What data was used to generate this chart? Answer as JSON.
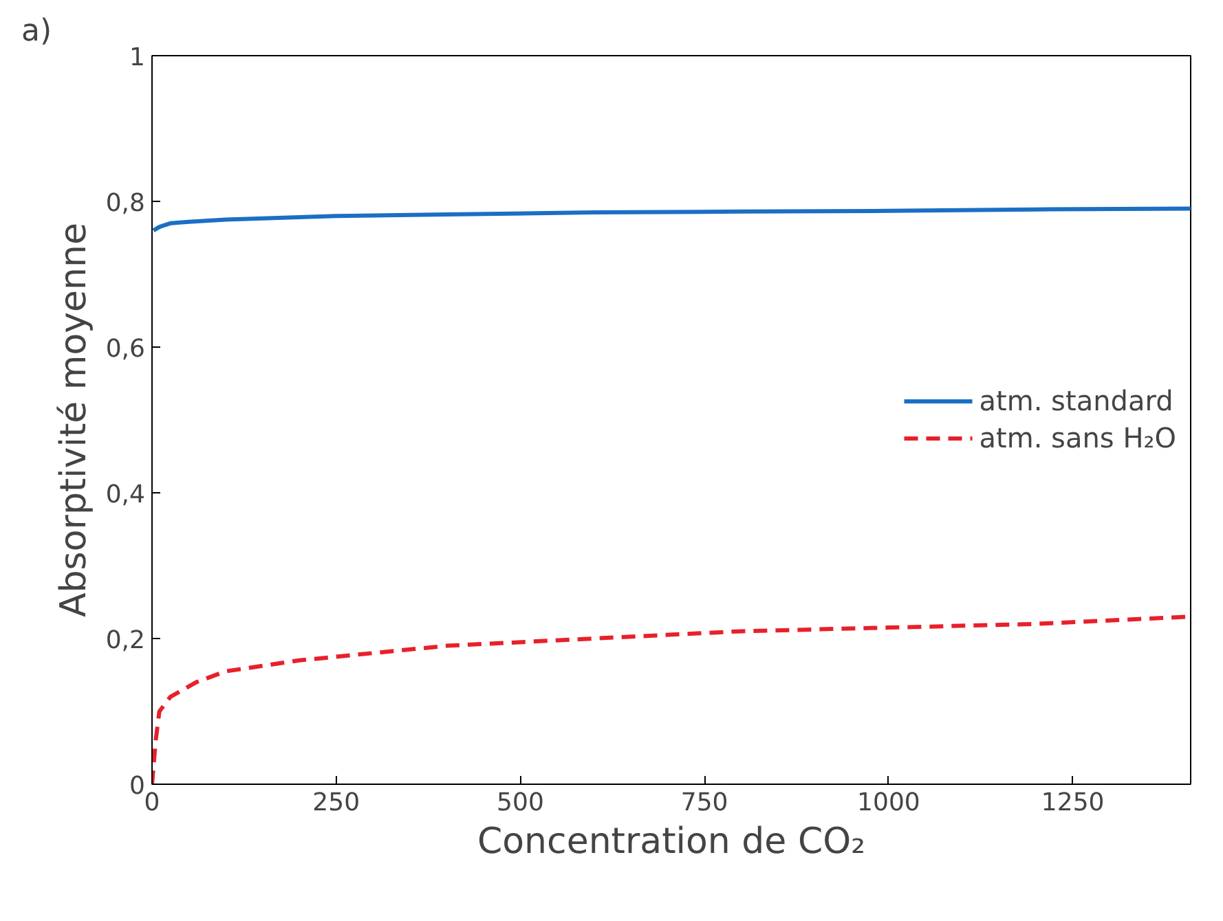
{
  "chart_data": {
    "type": "line",
    "xlabel": "Concentration de CO₂",
    "ylabel": "Absorptivité moyenne",
    "annotations": [
      "a)"
    ],
    "xlim": [
      0,
      1410
    ],
    "ylim": [
      0,
      1
    ],
    "xticks": [
      0,
      250,
      500,
      750,
      1000,
      1250
    ],
    "yticks": [
      0,
      {
        "value": 0.2,
        "label": "0,2"
      },
      {
        "value": 0.4,
        "label": "0,4"
      },
      {
        "value": 0.6,
        "label": "0,6"
      },
      {
        "value": 0.8,
        "label": "0,8"
      },
      1
    ],
    "grid": false,
    "legend": "right",
    "series": [
      {
        "name": "atm. standard",
        "color": "#1a6fc4",
        "line_style": "solid",
        "x": [
          2,
          10,
          25,
          50,
          100,
          250,
          400,
          600,
          800,
          1000,
          1200,
          1410
        ],
        "values": [
          0.76,
          0.765,
          0.77,
          0.772,
          0.775,
          0.78,
          0.782,
          0.785,
          0.786,
          0.787,
          0.789,
          0.79
        ]
      },
      {
        "name": "atm. sans H₂O",
        "color": "#e8202a",
        "line_style": "dashed",
        "x": [
          0,
          5,
          10,
          25,
          60,
          100,
          200,
          300,
          400,
          600,
          800,
          1000,
          1200,
          1410
        ],
        "values": [
          0,
          0.06,
          0.1,
          0.12,
          0.14,
          0.155,
          0.17,
          0.18,
          0.19,
          0.2,
          0.21,
          0.215,
          0.22,
          0.23
        ]
      }
    ]
  }
}
